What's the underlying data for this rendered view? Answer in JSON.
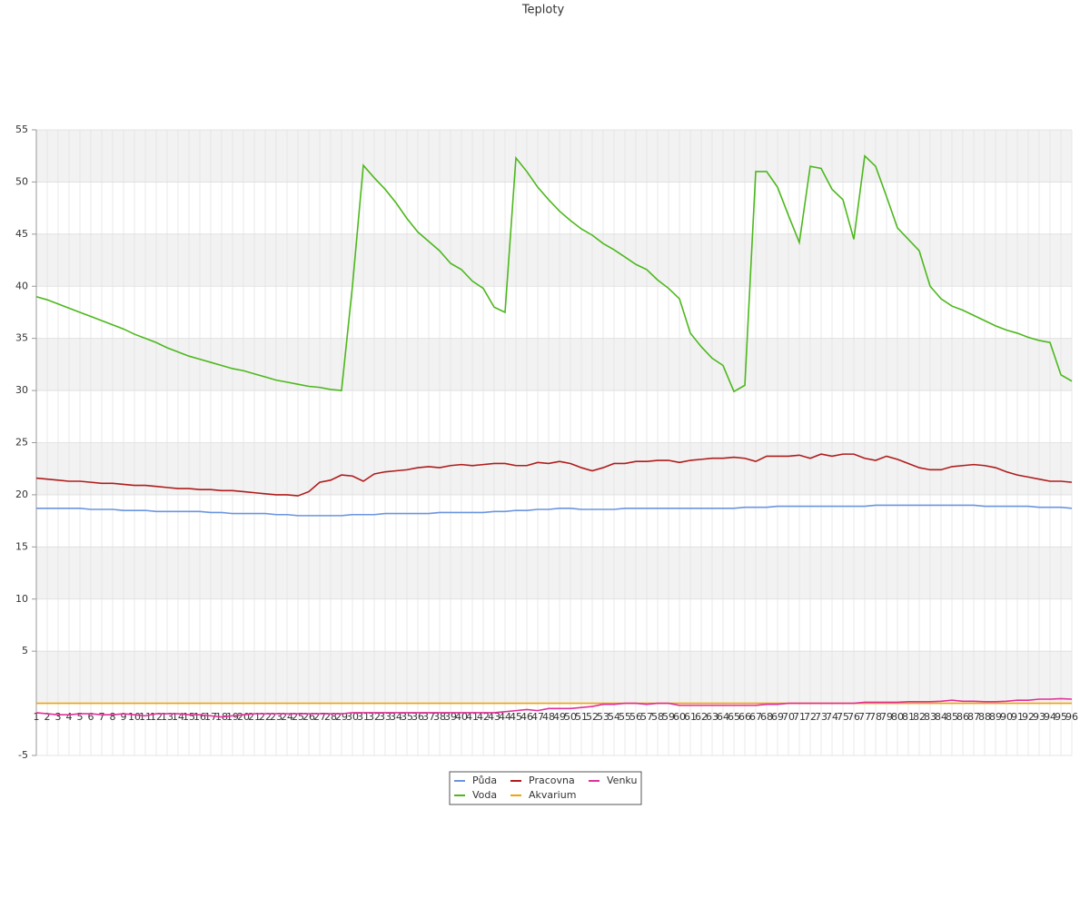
{
  "chart_data": {
    "type": "line",
    "title": "Teploty",
    "categories": [
      "1",
      "2",
      "3",
      "4",
      "5",
      "6",
      "7",
      "8",
      "9",
      "10",
      "11",
      "12",
      "13",
      "14",
      "15",
      "16",
      "17",
      "18",
      "19",
      "20",
      "21",
      "22",
      "23",
      "24",
      "25",
      "26",
      "27",
      "28",
      "29",
      "30",
      "31",
      "32",
      "33",
      "34",
      "35",
      "36",
      "37",
      "38",
      "39",
      "40",
      "41",
      "42",
      "43",
      "44",
      "45",
      "46",
      "47",
      "48",
      "49",
      "50",
      "51",
      "52",
      "53",
      "54",
      "55",
      "56",
      "57",
      "58",
      "59",
      "60",
      "61",
      "62",
      "63",
      "64",
      "65",
      "66",
      "67",
      "68",
      "69",
      "70",
      "71",
      "72",
      "73",
      "74",
      "75",
      "76",
      "77",
      "78",
      "79",
      "80",
      "81",
      "82",
      "83",
      "84",
      "85",
      "86",
      "87",
      "88",
      "89",
      "90",
      "91",
      "92",
      "93",
      "94",
      "95",
      "96"
    ],
    "series": [
      {
        "name": "Půda",
        "color": "#6a95e0",
        "values": [
          18.7,
          18.7,
          18.7,
          18.7,
          18.7,
          18.6,
          18.6,
          18.6,
          18.5,
          18.5,
          18.5,
          18.4,
          18.4,
          18.4,
          18.4,
          18.4,
          18.3,
          18.3,
          18.2,
          18.2,
          18.2,
          18.2,
          18.1,
          18.1,
          18.0,
          18.0,
          18.0,
          18.0,
          18.0,
          18.1,
          18.1,
          18.1,
          18.2,
          18.2,
          18.2,
          18.2,
          18.2,
          18.3,
          18.3,
          18.3,
          18.3,
          18.3,
          18.4,
          18.4,
          18.5,
          18.5,
          18.6,
          18.6,
          18.7,
          18.7,
          18.6,
          18.6,
          18.6,
          18.6,
          18.7,
          18.7,
          18.7,
          18.7,
          18.7,
          18.7,
          18.7,
          18.7,
          18.7,
          18.7,
          18.7,
          18.8,
          18.8,
          18.8,
          18.9,
          18.9,
          18.9,
          18.9,
          18.9,
          18.9,
          18.9,
          18.9,
          18.9,
          19.0,
          19.0,
          19.0,
          19.0,
          19.0,
          19.0,
          19.0,
          19.0,
          19.0,
          19.0,
          18.9,
          18.9,
          18.9,
          18.9,
          18.9,
          18.8,
          18.8,
          18.8,
          18.7
        ]
      },
      {
        "name": "Voda",
        "color": "#4cb81c",
        "values": [
          39,
          38.7,
          38.3,
          37.9,
          37.5,
          37.1,
          36.7,
          36.3,
          35.9,
          35.4,
          35,
          34.6,
          34.1,
          33.7,
          33.3,
          33,
          32.7,
          32.4,
          32.1,
          31.9,
          31.6,
          31.3,
          31,
          30.8,
          30.6,
          30.4,
          30.3,
          30.1,
          30,
          40,
          51.6,
          50.4,
          49.3,
          48,
          46.5,
          45.2,
          44.3,
          43.4,
          42.2,
          41.6,
          40.5,
          39.8,
          38,
          37.5,
          52.3,
          51,
          49.5,
          48.3,
          47.2,
          46.3,
          45.5,
          44.9,
          44.1,
          43.5,
          42.8,
          42.1,
          41.6,
          40.6,
          39.8,
          38.8,
          35.5,
          34.2,
          33.1,
          32.4,
          29.9,
          30.5,
          51,
          51,
          49.5,
          46.8,
          44.2,
          51.5,
          51.3,
          49.3,
          48.3,
          44.5,
          52.5,
          51.5,
          48.6,
          45.6,
          44.5,
          43.4,
          40,
          38.8,
          38.1,
          37.7,
          37.2,
          36.7,
          36.2,
          35.8,
          35.5,
          35.1,
          34.8,
          34.6,
          31.5,
          30.9
        ]
      },
      {
        "name": "Pracovna",
        "color": "#b01c1c",
        "values": [
          21.6,
          21.5,
          21.4,
          21.3,
          21.3,
          21.2,
          21.1,
          21.1,
          21.0,
          20.9,
          20.9,
          20.8,
          20.7,
          20.6,
          20.6,
          20.5,
          20.5,
          20.4,
          20.4,
          20.3,
          20.2,
          20.1,
          20.0,
          20.0,
          19.9,
          20.3,
          21.2,
          21.4,
          21.9,
          21.8,
          21.3,
          22.0,
          22.2,
          22.3,
          22.4,
          22.6,
          22.7,
          22.6,
          22.8,
          22.9,
          22.8,
          22.9,
          23.0,
          23.0,
          22.8,
          22.8,
          23.1,
          23.0,
          23.2,
          23.0,
          22.6,
          22.3,
          22.6,
          23.0,
          23.0,
          23.2,
          23.2,
          23.3,
          23.3,
          23.1,
          23.3,
          23.4,
          23.5,
          23.5,
          23.6,
          23.5,
          23.2,
          23.7,
          23.7,
          23.7,
          23.8,
          23.5,
          23.9,
          23.7,
          23.9,
          23.9,
          23.5,
          23.3,
          23.7,
          23.4,
          23.0,
          22.6,
          22.4,
          22.4,
          22.7,
          22.8,
          22.9,
          22.8,
          22.6,
          22.2,
          21.9,
          21.7,
          21.5,
          21.3,
          21.3,
          21.2
        ]
      },
      {
        "name": "Akvarium",
        "color": "#f0a30a",
        "values": [
          0,
          0,
          0,
          0,
          0,
          0,
          0,
          0,
          0,
          0,
          0,
          0,
          0,
          0,
          0,
          0,
          0,
          0,
          0,
          0,
          0,
          0,
          0,
          0,
          0,
          0,
          0,
          0,
          0,
          0,
          0,
          0,
          0,
          0,
          0,
          0,
          0,
          0,
          0,
          0,
          0,
          0,
          0,
          0,
          0,
          0,
          0,
          0,
          0,
          0,
          0,
          0,
          0,
          0,
          0,
          0,
          0,
          0,
          0,
          0,
          0,
          0,
          0,
          0,
          0,
          0,
          0,
          0,
          0,
          0,
          0,
          0,
          0,
          0,
          0,
          0,
          0,
          0,
          0,
          0,
          0,
          0,
          0,
          0,
          0,
          0,
          0,
          0,
          0,
          0,
          0,
          0,
          0,
          0,
          0,
          0
        ]
      },
      {
        "name": "Venku",
        "color": "#e0309a",
        "values": [
          -0.9,
          -1.0,
          -1.1,
          -1.1,
          -1.0,
          -1.0,
          -1.1,
          -1.1,
          -1.0,
          -1.1,
          -1.2,
          -1.0,
          -1.0,
          -1.0,
          -1.1,
          -1.1,
          -1.2,
          -1.3,
          -1.2,
          -1.1,
          -1.0,
          -1.0,
          -1.0,
          -1.0,
          -1.0,
          -1.0,
          -1.0,
          -1.0,
          -1.0,
          -0.9,
          -0.9,
          -0.9,
          -0.9,
          -0.9,
          -0.9,
          -0.9,
          -0.9,
          -0.9,
          -0.9,
          -0.9,
          -0.9,
          -0.9,
          -0.9,
          -0.8,
          -0.7,
          -0.6,
          -0.7,
          -0.5,
          -0.5,
          -0.5,
          -0.4,
          -0.3,
          -0.1,
          -0.1,
          0.0,
          0.0,
          -0.1,
          0.0,
          0.0,
          -0.2,
          -0.2,
          -0.2,
          -0.2,
          -0.2,
          -0.2,
          -0.2,
          -0.2,
          -0.1,
          -0.1,
          0.0,
          0.0,
          0.0,
          0.0,
          0.0,
          0.0,
          0.0,
          0.1,
          0.1,
          0.1,
          0.1,
          0.15,
          0.15,
          0.15,
          0.2,
          0.3,
          0.2,
          0.2,
          0.15,
          0.15,
          0.2,
          0.3,
          0.3,
          0.4,
          0.4,
          0.45,
          0.4
        ]
      }
    ],
    "ylim": [
      -5,
      55
    ],
    "yticks": [
      55,
      50,
      45,
      40,
      35,
      30,
      25,
      20,
      15,
      10,
      5,
      -5
    ],
    "grid": true
  }
}
